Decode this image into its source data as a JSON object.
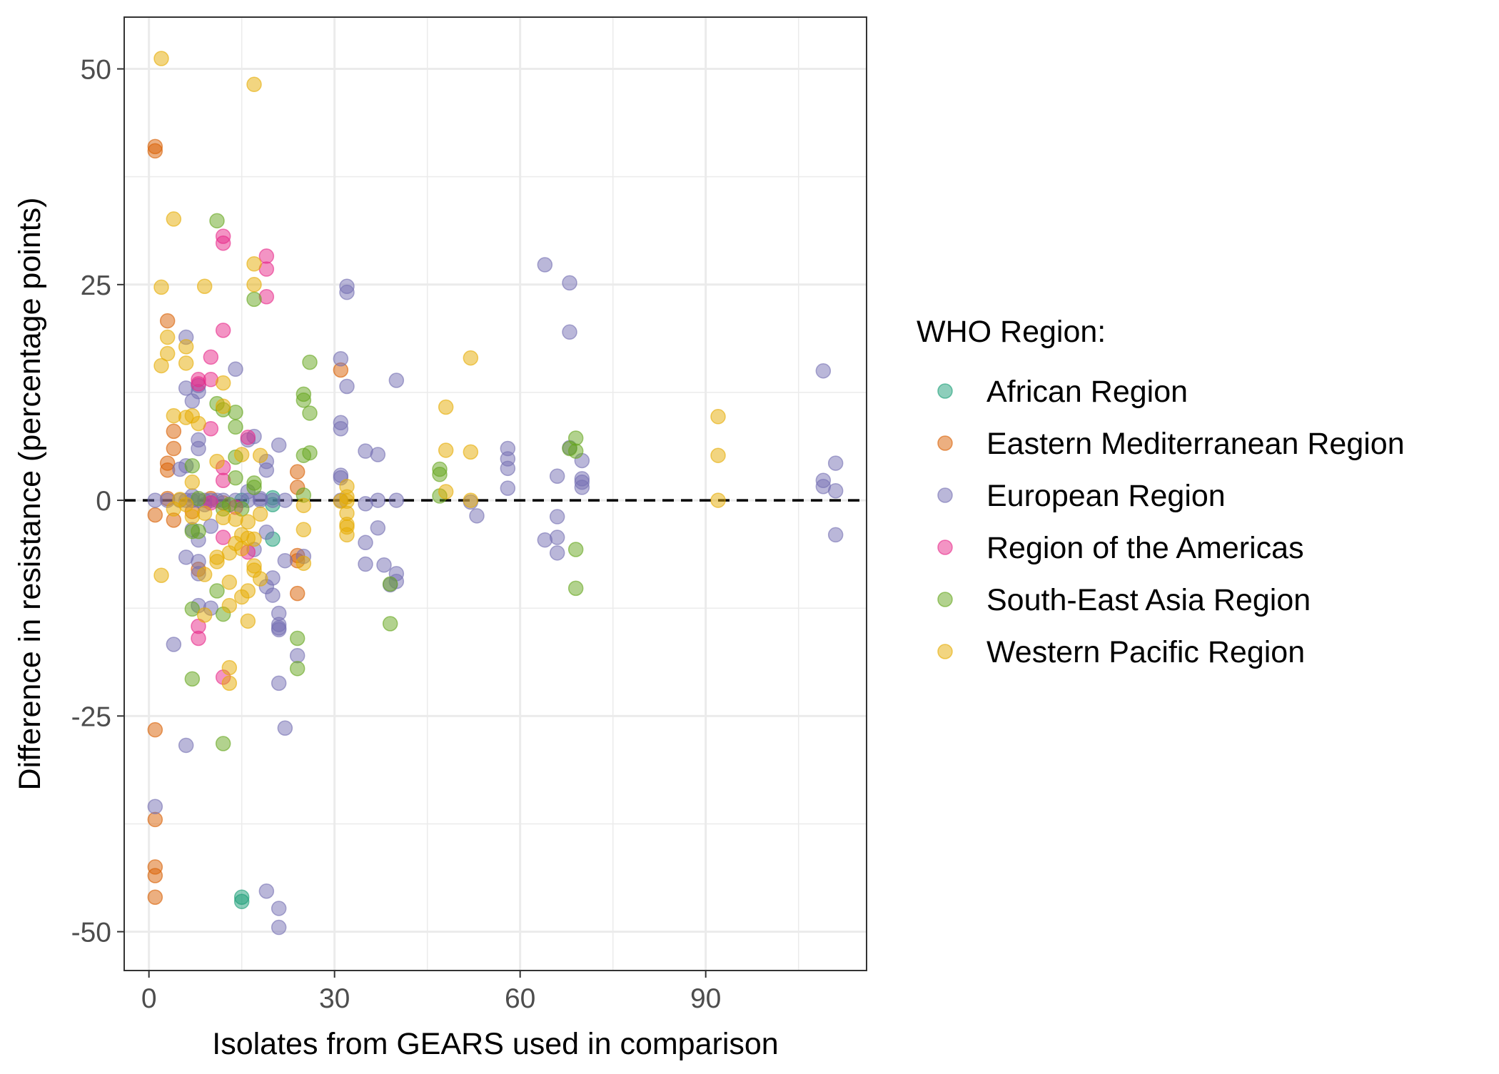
{
  "chart_data": {
    "type": "scatter",
    "xlabel": "Isolates from GEARS used in comparison",
    "ylabel": "Difference in resistance (percentage points)",
    "xlim": [
      -4,
      116
    ],
    "ylim": [
      -54.5,
      56
    ],
    "x_ticks": [
      0,
      30,
      60,
      90
    ],
    "x_tick_labels": [
      "0",
      "30",
      "60",
      "90"
    ],
    "x_minor_ticks": [
      15,
      45,
      75,
      105
    ],
    "y_ticks": [
      -50,
      -25,
      0,
      25,
      50
    ],
    "y_tick_labels": [
      "-50",
      "-25",
      "0",
      "25",
      "50"
    ],
    "y_minor_ticks": [
      -37.5,
      -12.5,
      12.5,
      37.5
    ],
    "grid": true,
    "reference_line": {
      "y": 0,
      "style": "dashed",
      "color": "#000000"
    },
    "legend": {
      "title": "WHO Region:",
      "placement": "right"
    },
    "series": [
      {
        "name": "African Region",
        "color": "#1b9e77",
        "points": [
          [
            15,
            -46
          ],
          [
            15,
            -46.5
          ],
          [
            20,
            -4.5
          ],
          [
            20,
            0.3
          ],
          [
            15,
            0
          ],
          [
            20,
            -0.5
          ]
        ]
      },
      {
        "name": "Eastern Mediterranean Region",
        "color": "#d95f02",
        "points": [
          [
            1,
            41
          ],
          [
            1,
            40.5
          ],
          [
            3,
            20.8
          ],
          [
            4,
            8
          ],
          [
            4,
            6
          ],
          [
            3,
            4.3
          ],
          [
            3,
            3.5
          ],
          [
            1,
            -1.7
          ],
          [
            4,
            -2.3
          ],
          [
            3,
            0.2
          ],
          [
            8,
            -8
          ],
          [
            24,
            -6.4
          ],
          [
            24,
            -7
          ],
          [
            24,
            -10.8
          ],
          [
            24,
            3.3
          ],
          [
            24,
            1.5
          ],
          [
            31,
            15.1
          ],
          [
            1,
            -26.6
          ],
          [
            1,
            -37
          ],
          [
            1,
            -42.5
          ],
          [
            1,
            -43.5
          ],
          [
            1,
            -46
          ],
          [
            12,
            -0.3
          ],
          [
            7,
            -1.3
          ],
          [
            10,
            0.2
          ]
        ]
      },
      {
        "name": "European Region",
        "color": "#7570b3",
        "points": [
          [
            1,
            0
          ],
          [
            3,
            0
          ],
          [
            5,
            0
          ],
          [
            6,
            0
          ],
          [
            7,
            0
          ],
          [
            8,
            0
          ],
          [
            9,
            0
          ],
          [
            10,
            0
          ],
          [
            11,
            0
          ],
          [
            12,
            0
          ],
          [
            14,
            0
          ],
          [
            16,
            0
          ],
          [
            18,
            0
          ],
          [
            20,
            0
          ],
          [
            22,
            0
          ],
          [
            31,
            0
          ],
          [
            37,
            0
          ],
          [
            40,
            0
          ],
          [
            6,
            18.9
          ],
          [
            7,
            11.5
          ],
          [
            6,
            13
          ],
          [
            8,
            12.6
          ],
          [
            8,
            13.3
          ],
          [
            8,
            7
          ],
          [
            8,
            6
          ],
          [
            6,
            4
          ],
          [
            5,
            3.6
          ],
          [
            7,
            0.5
          ],
          [
            9,
            -0.5
          ],
          [
            10,
            -3
          ],
          [
            7,
            -3.4
          ],
          [
            8,
            -4.6
          ],
          [
            6,
            -6.6
          ],
          [
            8,
            -7.1
          ],
          [
            8,
            -8.5
          ],
          [
            8,
            -12.2
          ],
          [
            10,
            -12.5
          ],
          [
            4,
            -16.7
          ],
          [
            6,
            -28.4
          ],
          [
            1,
            -35.5
          ],
          [
            14,
            15.2
          ],
          [
            17,
            7.4
          ],
          [
            16,
            7
          ],
          [
            19,
            4.5
          ],
          [
            19,
            3.5
          ],
          [
            21,
            6.4
          ],
          [
            16,
            1
          ],
          [
            18,
            0.2
          ],
          [
            19,
            -3.7
          ],
          [
            17,
            -5.7
          ],
          [
            20,
            -9
          ],
          [
            19,
            -10
          ],
          [
            20,
            -11
          ],
          [
            21,
            -13.1
          ],
          [
            21,
            -14.4
          ],
          [
            21,
            -14.8
          ],
          [
            21,
            -15
          ],
          [
            24,
            -18
          ],
          [
            22,
            -7
          ],
          [
            25,
            -6.5
          ],
          [
            21,
            -21.2
          ],
          [
            22,
            -26.4
          ],
          [
            19,
            -45.3
          ],
          [
            21,
            -47.3
          ],
          [
            21,
            -49.5
          ],
          [
            32,
            24.8
          ],
          [
            32,
            24.1
          ],
          [
            31,
            16.4
          ],
          [
            32,
            13.2
          ],
          [
            31,
            9
          ],
          [
            31,
            8.3
          ],
          [
            31,
            2.9
          ],
          [
            31,
            2.6
          ],
          [
            35,
            5.7
          ],
          [
            37,
            5.3
          ],
          [
            35,
            -0.4
          ],
          [
            37,
            -3.2
          ],
          [
            35,
            -4.9
          ],
          [
            35,
            -7.4
          ],
          [
            38,
            -7.5
          ],
          [
            40,
            -8.5
          ],
          [
            40,
            -9.4
          ],
          [
            39,
            -9.8
          ],
          [
            40,
            13.9
          ],
          [
            52,
            -0.2
          ],
          [
            53,
            -1.8
          ],
          [
            58,
            6
          ],
          [
            58,
            4.8
          ],
          [
            58,
            3.7
          ],
          [
            58,
            1.4
          ],
          [
            64,
            27.3
          ],
          [
            68,
            25.2
          ],
          [
            68,
            19.5
          ],
          [
            68,
            6.1
          ],
          [
            66,
            2.8
          ],
          [
            70,
            4.6
          ],
          [
            70,
            2.5
          ],
          [
            70,
            1.5
          ],
          [
            70,
            2.1
          ],
          [
            66,
            -1.9
          ],
          [
            66,
            -4.3
          ],
          [
            64,
            -4.6
          ],
          [
            66,
            -6.1
          ],
          [
            109,
            15
          ],
          [
            109,
            2.3
          ],
          [
            109,
            1.6
          ],
          [
            111,
            4.3
          ],
          [
            111,
            1.1
          ],
          [
            111,
            -4
          ]
        ]
      },
      {
        "name": "Region of the Americas",
        "color": "#e7298a",
        "points": [
          [
            12,
            30.6
          ],
          [
            12,
            29.8
          ],
          [
            19,
            28.3
          ],
          [
            19,
            26.8
          ],
          [
            19,
            23.6
          ],
          [
            12,
            19.7
          ],
          [
            10,
            16.6
          ],
          [
            8,
            14
          ],
          [
            10,
            14
          ],
          [
            8,
            13.5
          ],
          [
            10,
            8.3
          ],
          [
            12,
            3.8
          ],
          [
            12,
            2.3
          ],
          [
            16,
            7.3
          ],
          [
            12,
            -4.3
          ],
          [
            8,
            -14.6
          ],
          [
            8,
            -16
          ],
          [
            12,
            -20.5
          ],
          [
            16,
            -6
          ],
          [
            10,
            -0.3
          ],
          [
            14,
            -0.8
          ]
        ]
      },
      {
        "name": "South-East Asia Region",
        "color": "#66a61e",
        "points": [
          [
            11,
            32.4
          ],
          [
            17,
            23.3
          ],
          [
            11,
            11.2
          ],
          [
            14,
            10.2
          ],
          [
            14,
            8.5
          ],
          [
            12,
            10.5
          ],
          [
            14,
            5
          ],
          [
            14,
            2.6
          ],
          [
            17,
            2
          ],
          [
            17,
            1.5
          ],
          [
            13,
            -0.5
          ],
          [
            12,
            -1
          ],
          [
            8,
            0.2
          ],
          [
            7,
            4
          ],
          [
            7,
            -3.6
          ],
          [
            8,
            -3.6
          ],
          [
            11,
            -10.5
          ],
          [
            12,
            -13.2
          ],
          [
            7,
            -12.6
          ],
          [
            7,
            -20.7
          ],
          [
            12,
            -28.2
          ],
          [
            25,
            12.3
          ],
          [
            25,
            11.6
          ],
          [
            26,
            10.1
          ],
          [
            26,
            16
          ],
          [
            25,
            5.2
          ],
          [
            26,
            5.5
          ],
          [
            25,
            0.6
          ],
          [
            24,
            -16
          ],
          [
            24,
            -19.5
          ],
          [
            39,
            -9.7
          ],
          [
            39,
            -14.3
          ],
          [
            47,
            3.6
          ],
          [
            47,
            3
          ],
          [
            47,
            0.5
          ],
          [
            69,
            7.2
          ],
          [
            69,
            5.7
          ],
          [
            69,
            -5.7
          ],
          [
            69,
            -10.2
          ],
          [
            68,
            6
          ],
          [
            15,
            -1
          ]
        ]
      },
      {
        "name": "Western Pacific Region",
        "color": "#e6ab02",
        "points": [
          [
            2,
            51.2
          ],
          [
            17,
            48.2
          ],
          [
            4,
            32.6
          ],
          [
            2,
            24.7
          ],
          [
            9,
            24.8
          ],
          [
            17,
            27.4
          ],
          [
            17,
            25
          ],
          [
            3,
            18.9
          ],
          [
            6,
            17.8
          ],
          [
            3,
            17
          ],
          [
            2,
            15.6
          ],
          [
            6,
            15.9
          ],
          [
            12,
            13.6
          ],
          [
            4,
            9.8
          ],
          [
            6,
            9.6
          ],
          [
            7,
            9.8
          ],
          [
            8,
            8.9
          ],
          [
            7,
            2.1
          ],
          [
            11,
            4.5
          ],
          [
            15,
            5.3
          ],
          [
            18,
            5.2
          ],
          [
            12,
            10.9
          ],
          [
            5,
            0.1
          ],
          [
            6,
            -0.5
          ],
          [
            4,
            -1
          ],
          [
            7,
            -1.9
          ],
          [
            9,
            -1.5
          ],
          [
            12,
            -2
          ],
          [
            14,
            -2.2
          ],
          [
            16,
            -2.5
          ],
          [
            18,
            -1.6
          ],
          [
            15,
            -4
          ],
          [
            16,
            -4.4
          ],
          [
            17,
            -4.5
          ],
          [
            14,
            -5
          ],
          [
            15,
            -5.6
          ],
          [
            13,
            -6.1
          ],
          [
            11,
            -6.6
          ],
          [
            11,
            -7.1
          ],
          [
            17,
            -7.6
          ],
          [
            17,
            -8.1
          ],
          [
            18,
            -9.1
          ],
          [
            13,
            -9.5
          ],
          [
            16,
            -10.5
          ],
          [
            15,
            -11.2
          ],
          [
            9,
            -8.6
          ],
          [
            9,
            -13.3
          ],
          [
            13,
            -12.2
          ],
          [
            16,
            -14
          ],
          [
            2,
            -8.7
          ],
          [
            13,
            -19.4
          ],
          [
            13,
            -21.2
          ],
          [
            25,
            -3.4
          ],
          [
            25,
            -7.3
          ],
          [
            25,
            -0.6
          ],
          [
            32,
            1.6
          ],
          [
            32,
            0.4
          ],
          [
            31,
            -0.1
          ],
          [
            32,
            -0.1
          ],
          [
            32,
            -1.5
          ],
          [
            32,
            -2.8
          ],
          [
            32,
            -3.1
          ],
          [
            32,
            -4
          ],
          [
            48,
            10.8
          ],
          [
            48,
            5.8
          ],
          [
            48,
            1
          ],
          [
            52,
            16.5
          ],
          [
            52,
            5.6
          ],
          [
            52,
            0
          ],
          [
            92,
            9.7
          ],
          [
            92,
            5.2
          ],
          [
            92,
            0
          ]
        ]
      }
    ]
  }
}
